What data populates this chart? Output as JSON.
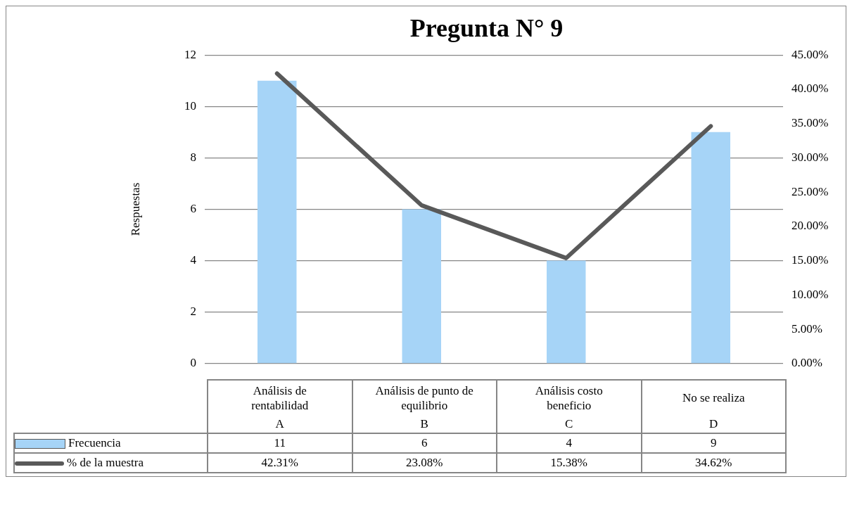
{
  "chart_data": {
    "type": "bar",
    "title": "Pregunta N° 9",
    "ylabel": "Respuestas",
    "categories": [
      "Análisis de rentabilidad",
      "Análisis de punto de equilibrio",
      "Análisis costo beneficio",
      "No se realiza"
    ],
    "series": [
      {
        "name": "Frecuencia",
        "color": "#a6d4f7",
        "values": [
          11,
          6,
          4,
          9
        ],
        "value_labels": [
          "11",
          "6",
          "4",
          "9"
        ]
      },
      {
        "name": "% de la muestra",
        "type": "line",
        "axis": "y2",
        "color": "#595959",
        "values": [
          42.31,
          23.08,
          15.38,
          34.62
        ],
        "value_labels": [
          "42.31%",
          "23.08%",
          "15.38%",
          "34.62%"
        ]
      }
    ],
    "ylim": [
      0,
      12
    ],
    "yticks": [
      0,
      2,
      4,
      6,
      8,
      10,
      12
    ],
    "y2lim": [
      0,
      45
    ],
    "y2ticks": [
      {
        "value": 0,
        "label": "0.00%"
      },
      {
        "value": 5,
        "label": "5.00%"
      },
      {
        "value": 10,
        "label": "10.00%"
      },
      {
        "value": 15,
        "label": "15.00%"
      },
      {
        "value": 20,
        "label": "20.00%"
      },
      {
        "value": 25,
        "label": "25.00%"
      },
      {
        "value": 30,
        "label": "30.00%"
      },
      {
        "value": 35,
        "label": "35.00%"
      },
      {
        "value": 40,
        "label": "40.00%"
      },
      {
        "value": 45,
        "label": "45.00%"
      }
    ],
    "grid": "y",
    "legend": "bottom",
    "marker": "none",
    "annotations": [
      "A",
      "B",
      "C",
      "D"
    ]
  }
}
